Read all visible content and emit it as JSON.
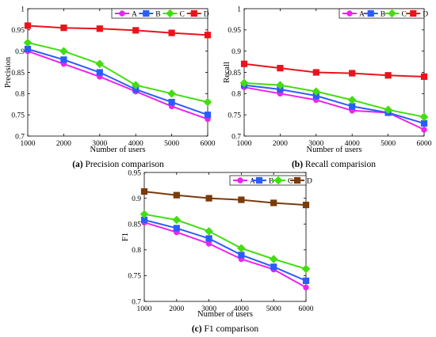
{
  "colors": {
    "A": "#ee22ee",
    "B": "#2a5cff",
    "C": "#44dd11",
    "D_red": "#e8141c",
    "D_brown": "#7a3a0a"
  },
  "chart_data": [
    {
      "type": "line",
      "caption_label": "(a)",
      "caption_text": "Precision comparison",
      "xlabel": "Number of users",
      "ylabel": "Precision",
      "x": [
        1000,
        2000,
        3000,
        4000,
        5000,
        6000
      ],
      "xticks": [
        "1000",
        "2000",
        "3000",
        "4000",
        "5000",
        "6000"
      ],
      "ylim": [
        0.7,
        1.0
      ],
      "yticks": [
        "0.7",
        "0.75",
        "0.8",
        "0.85",
        "0.9",
        "0.95",
        "1"
      ],
      "legend": "top-right",
      "series": [
        {
          "name": "A",
          "marker": "circle",
          "color": "#ee22ee",
          "values": [
            0.9,
            0.87,
            0.84,
            0.805,
            0.77,
            0.74
          ]
        },
        {
          "name": "B",
          "marker": "square",
          "color": "#2a5cff",
          "values": [
            0.905,
            0.88,
            0.85,
            0.81,
            0.78,
            0.75
          ]
        },
        {
          "name": "C",
          "marker": "diamond",
          "color": "#44dd11",
          "values": [
            0.92,
            0.9,
            0.87,
            0.82,
            0.8,
            0.78
          ]
        },
        {
          "name": "D",
          "marker": "square",
          "color": "#e8141c",
          "values": [
            0.96,
            0.955,
            0.953,
            0.949,
            0.943,
            0.938
          ]
        }
      ]
    },
    {
      "type": "line",
      "caption_label": "(b)",
      "caption_text": "Recall comparision",
      "xlabel": "Number of users",
      "ylabel": "Recall",
      "x": [
        1000,
        2000,
        3000,
        4000,
        5000,
        6000
      ],
      "xticks": [
        "1000",
        "2000",
        "3000",
        "4000",
        "5000",
        "6000"
      ],
      "ylim": [
        0.7,
        1.0
      ],
      "yticks": [
        "0.7",
        "0.75",
        "0.8",
        "0.85",
        "0.9",
        "0.95",
        "1"
      ],
      "legend": "top-right",
      "series": [
        {
          "name": "A",
          "marker": "circle",
          "color": "#ee22ee",
          "values": [
            0.815,
            0.8,
            0.785,
            0.76,
            0.755,
            0.715
          ]
        },
        {
          "name": "B",
          "marker": "square",
          "color": "#2a5cff",
          "values": [
            0.82,
            0.81,
            0.795,
            0.77,
            0.755,
            0.73
          ]
        },
        {
          "name": "C",
          "marker": "diamond",
          "color": "#44dd11",
          "values": [
            0.825,
            0.82,
            0.805,
            0.785,
            0.762,
            0.745
          ]
        },
        {
          "name": "D",
          "marker": "square",
          "color": "#e8141c",
          "values": [
            0.87,
            0.86,
            0.85,
            0.848,
            0.843,
            0.84
          ]
        }
      ]
    },
    {
      "type": "line",
      "caption_label": "(c)",
      "caption_text": "F1 comparison",
      "xlabel": "Number of users",
      "ylabel": "F1",
      "x": [
        1000,
        2000,
        3000,
        4000,
        5000,
        6000
      ],
      "xticks": [
        "1000",
        "2000",
        "3000",
        "4000",
        "5000",
        "6000"
      ],
      "ylim": [
        0.7,
        0.95
      ],
      "yticks": [
        "0.7",
        "0.75",
        "0.8",
        "0.85",
        "0.9",
        "0.95"
      ],
      "legend": "top-right",
      "series": [
        {
          "name": "A",
          "marker": "circle",
          "color": "#ee22ee",
          "values": [
            0.853,
            0.834,
            0.812,
            0.782,
            0.762,
            0.727
          ]
        },
        {
          "name": "B",
          "marker": "square",
          "color": "#2a5cff",
          "values": [
            0.858,
            0.842,
            0.822,
            0.79,
            0.767,
            0.74
          ]
        },
        {
          "name": "C",
          "marker": "diamond",
          "color": "#44dd11",
          "values": [
            0.869,
            0.858,
            0.836,
            0.803,
            0.782,
            0.763
          ]
        },
        {
          "name": "D",
          "marker": "square",
          "color": "#7a3a0a",
          "values": [
            0.913,
            0.906,
            0.9,
            0.897,
            0.891,
            0.887
          ]
        }
      ]
    }
  ]
}
